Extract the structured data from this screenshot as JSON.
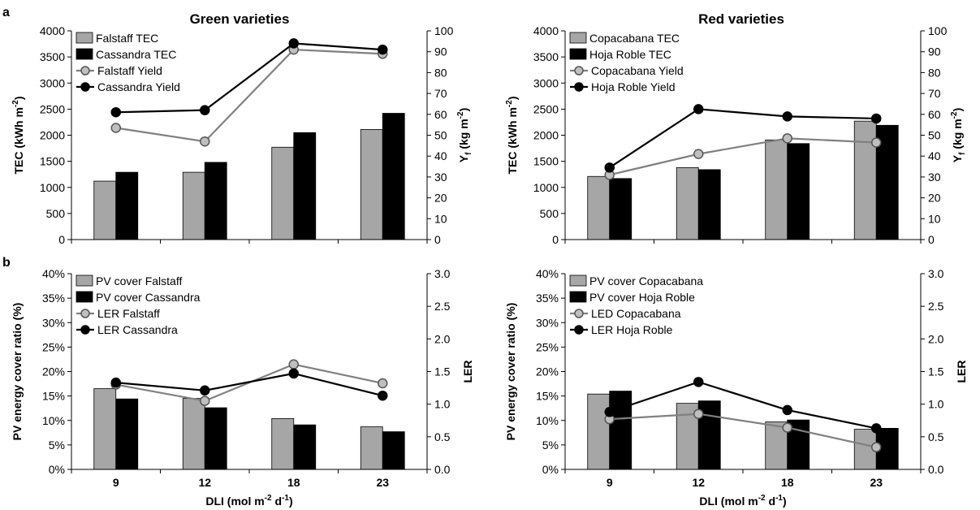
{
  "figure": {
    "panel_labels": [
      "a",
      "b"
    ],
    "titles": {
      "green": "Green varieties",
      "red": "Red varieties"
    },
    "xlabel_html": [
      "DLI (mol m",
      "-2",
      " d",
      "-1",
      ")"
    ],
    "tec_ylabel": [
      "TEC (kWh m",
      "-2",
      ")"
    ],
    "yield_ylabel": [
      "Y",
      "f",
      " (kg m",
      "-2",
      ")"
    ],
    "pv_ylabel": "PV energy cover ratio (%)",
    "ler_ylabel": "LER"
  },
  "colors": {
    "gray": "#a6a6a6",
    "black": "#000000",
    "gray_line": "#808080",
    "marker_gray": "#bfbfbf"
  },
  "chart_data": [
    {
      "id": "green-tec",
      "type": "bar+line",
      "title": "Green varieties",
      "categories": [
        "9",
        "12",
        "18",
        "23"
      ],
      "xlabel": "DLI (mol m-2 d-1)",
      "ylabel": "TEC (kWh m-2)",
      "y2label": "Yf (kg m-2)",
      "ylim": [
        0,
        4000
      ],
      "yticks": [
        0,
        500,
        1000,
        1500,
        2000,
        2500,
        3000,
        3500,
        4000
      ],
      "y2lim": [
        0,
        100
      ],
      "y2ticks": [
        0,
        10,
        20,
        30,
        40,
        50,
        60,
        70,
        80,
        90,
        100
      ],
      "bars": [
        {
          "name": "Falstaff TEC",
          "color": "gray",
          "values": [
            1120,
            1290,
            1770,
            2110
          ]
        },
        {
          "name": "Cassandra TEC",
          "color": "black",
          "values": [
            1290,
            1480,
            2050,
            2420
          ]
        }
      ],
      "lines": [
        {
          "name": "Falstaff Yield",
          "color": "gray",
          "values": [
            53.5,
            47,
            91,
            89
          ]
        },
        {
          "name": "Cassandra Yield",
          "color": "black",
          "values": [
            61,
            62,
            94,
            91
          ]
        }
      ],
      "legend": "top-left"
    },
    {
      "id": "red-tec",
      "type": "bar+line",
      "title": "Red varieties",
      "categories": [
        "9",
        "12",
        "18",
        "23"
      ],
      "xlabel": "DLI (mol m-2 d-1)",
      "ylabel": "TEC (kWh m-2)",
      "y2label": "Yf (kg m-2)",
      "ylim": [
        0,
        4000
      ],
      "yticks": [
        0,
        500,
        1000,
        1500,
        2000,
        2500,
        3000,
        3500,
        4000
      ],
      "y2lim": [
        0,
        100
      ],
      "y2ticks": [
        0,
        10,
        20,
        30,
        40,
        50,
        60,
        70,
        80,
        90,
        100
      ],
      "bars": [
        {
          "name": "Copacabana TEC",
          "color": "gray",
          "values": [
            1210,
            1380,
            1910,
            2270
          ]
        },
        {
          "name": "Hoja Roble TEC",
          "color": "black",
          "values": [
            1170,
            1340,
            1840,
            2190
          ]
        }
      ],
      "lines": [
        {
          "name": "Copacabana Yield",
          "color": "gray",
          "values": [
            31,
            41,
            48.5,
            46.5
          ]
        },
        {
          "name": "Hoja Roble Yield",
          "color": "black",
          "values": [
            34.5,
            62.5,
            59,
            58
          ]
        }
      ],
      "legend": "top-left"
    },
    {
      "id": "green-pv",
      "type": "bar+line",
      "categories": [
        "9",
        "12",
        "18",
        "23"
      ],
      "xlabel": "DLI (mol m-2 d-1)",
      "ylabel": "PV energy cover ratio (%)",
      "y2label": "LER",
      "ylim": [
        0,
        40
      ],
      "yticks": [
        0,
        5,
        10,
        15,
        20,
        25,
        30,
        35,
        40
      ],
      "y_suffix": "%",
      "y2lim": [
        0,
        3
      ],
      "y2ticks": [
        "0.0",
        "0.5",
        "1.0",
        "1.5",
        "2.0",
        "2.5",
        "3.0"
      ],
      "bars": [
        {
          "name": "PV cover Falstaff",
          "color": "gray",
          "values": [
            16.5,
            14.5,
            10.4,
            8.7
          ]
        },
        {
          "name": "PV cover Cassandra",
          "color": "black",
          "values": [
            14.4,
            12.6,
            9.1,
            7.7
          ]
        }
      ],
      "lines": [
        {
          "name": "LER Falstaff",
          "color": "gray",
          "values": [
            1.3,
            1.05,
            1.61,
            1.32
          ]
        },
        {
          "name": "LER Cassandra",
          "color": "black",
          "values": [
            1.33,
            1.21,
            1.47,
            1.13
          ]
        }
      ],
      "legend": "top-left"
    },
    {
      "id": "red-pv",
      "type": "bar+line",
      "categories": [
        "9",
        "12",
        "18",
        "23"
      ],
      "xlabel": "DLI (mol m-2 d-1)",
      "ylabel": "PV energy cover ratio (%)",
      "y2label": "LER",
      "ylim": [
        0,
        40
      ],
      "yticks": [
        0,
        5,
        10,
        15,
        20,
        25,
        30,
        35,
        40
      ],
      "y_suffix": "%",
      "y2lim": [
        0,
        3
      ],
      "y2ticks": [
        "0.0",
        "0.5",
        "1.0",
        "1.5",
        "2.0",
        "2.5",
        "3.0"
      ],
      "bars": [
        {
          "name": "PV cover Copacabana",
          "color": "gray",
          "values": [
            15.4,
            13.5,
            9.7,
            8.2
          ]
        },
        {
          "name": "PV cover Hoja Roble",
          "color": "black",
          "values": [
            16.0,
            14.0,
            10.1,
            8.4
          ]
        }
      ],
      "lines": [
        {
          "name": "LED Copacabana",
          "color": "gray",
          "values": [
            0.77,
            0.85,
            0.64,
            0.34
          ]
        },
        {
          "name": "LER Hoja Roble",
          "color": "black",
          "values": [
            0.88,
            1.34,
            0.91,
            0.63
          ]
        }
      ],
      "legend": "top-left"
    }
  ]
}
